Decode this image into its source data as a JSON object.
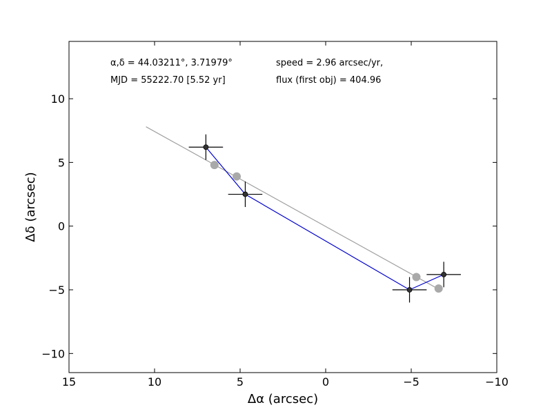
{
  "chart_data": {
    "type": "scatter",
    "title": "",
    "xlabel": "Δα (arcsec)",
    "ylabel": "Δδ (arcsec)",
    "xlim": [
      15,
      -10
    ],
    "ylim": [
      -11.5,
      14.5
    ],
    "x_ticks": [
      15,
      10,
      5,
      0,
      -5,
      -10
    ],
    "y_ticks": [
      10,
      5,
      0,
      -5,
      -10
    ],
    "x_tick_labels": [
      "15",
      "10",
      "5",
      "0",
      "−5",
      "−10"
    ],
    "y_tick_labels": [
      "10",
      "5",
      "0",
      "−5",
      "−10"
    ],
    "grid": false,
    "annotations": {
      "coords": "α,δ = 44.03211°, 3.71979°",
      "mjd": "MJD = 55222.70 [5.52 yr]",
      "speed": "speed = 2.96 arcsec/yr,",
      "flux": "flux (first obj) = 404.96"
    },
    "series": [
      {
        "style": "black points with error bars, connected by blue line",
        "color": "#333333",
        "line_color": "#0000cc",
        "x": [
          7.0,
          4.7,
          -4.9,
          -6.9
        ],
        "y": [
          6.2,
          2.5,
          -5.0,
          -3.8
        ],
        "xerr": [
          1.0,
          1.0,
          1.0,
          1.0
        ],
        "yerr": [
          1.0,
          1.0,
          1.0,
          1.0
        ]
      },
      {
        "style": "gray model positions",
        "color": "#a9a9a9",
        "x": [
          6.5,
          5.2,
          -5.3,
          -6.6
        ],
        "y": [
          4.8,
          3.9,
          -4.0,
          -4.9
        ]
      },
      {
        "style": "gray proper motion line",
        "color": "#a0a0a0",
        "x": [
          10.5,
          -6.4
        ],
        "y": [
          7.8,
          -4.8
        ]
      }
    ]
  }
}
